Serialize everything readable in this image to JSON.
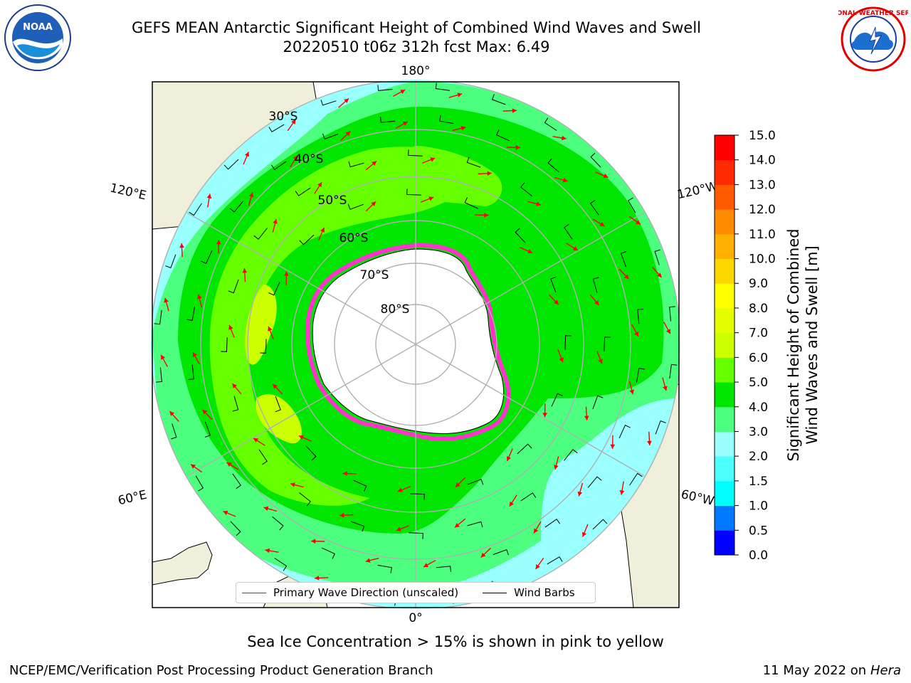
{
  "title": {
    "line1": "GEFS MEAN Antarctic Significant Height of Combined Wind Waves and Swell",
    "line2": "20220510 t06z 312h fcst   Max: 6.49"
  },
  "map": {
    "projection": "south-polar-stereographic",
    "lon_labels": [
      "180°",
      "120°E",
      "120°W",
      "60°E",
      "60°W",
      "0°"
    ],
    "lat_labels": [
      "30°S",
      "40°S",
      "50°S",
      "60°S",
      "70°S",
      "80°S"
    ]
  },
  "legend": {
    "wave_label": "Primary Wave Direction (unscaled)",
    "barb_label": "Wind Barbs",
    "wave_color": "#ff0000",
    "barb_color": "#000000"
  },
  "colorbar": {
    "title_line1": "Significant Height of Combined",
    "title_line2": "Wind Waves and Swell [m]",
    "ticks": [
      "0.0",
      "0.5",
      "1.0",
      "1.5",
      "2.0",
      "3.0",
      "4.0",
      "5.0",
      "6.0",
      "7.0",
      "8.0",
      "9.0",
      "10.0",
      "11.0",
      "12.0",
      "13.0",
      "14.0",
      "15.0"
    ],
    "colors": [
      "#0000ff",
      "#0078ff",
      "#00ffff",
      "#4dffff",
      "#99ffff",
      "#4dff7f",
      "#00e600",
      "#66ff00",
      "#ccff00",
      "#e6ff00",
      "#ffff00",
      "#ffd700",
      "#ffb000",
      "#ff8c00",
      "#ff5a00",
      "#ff2a00",
      "#ff0000"
    ]
  },
  "footer": {
    "note": "Sea Ice Concentration > 15% is shown in pink to yellow",
    "left": "NCEP/EMC/Verification Post Processing Product Generation Branch",
    "date": "11 May 2022 on",
    "host": "Hera"
  },
  "logos": {
    "left_text": "NOAA",
    "right_text": "NATIONAL WEATHER SERVICE"
  }
}
